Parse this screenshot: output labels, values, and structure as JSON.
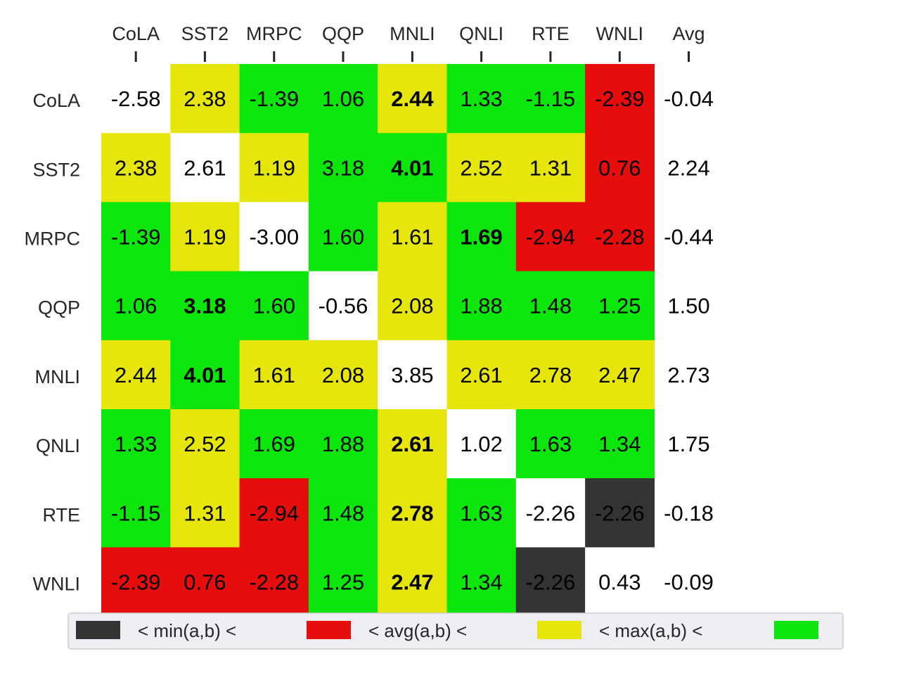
{
  "chart_data": {
    "type": "heatmap",
    "tasks": [
      "CoLA",
      "SST2",
      "MRPC",
      "QQP",
      "MNLI",
      "QNLI",
      "RTE",
      "WNLI"
    ],
    "avg_label": "Avg",
    "values": [
      [
        -2.58,
        2.38,
        -1.39,
        1.06,
        2.44,
        1.33,
        -1.15,
        -2.39
      ],
      [
        2.38,
        2.61,
        1.19,
        3.18,
        4.01,
        2.52,
        1.31,
        0.76
      ],
      [
        -1.39,
        1.19,
        -3.0,
        1.6,
        1.61,
        1.69,
        -2.94,
        -2.28
      ],
      [
        1.06,
        3.18,
        1.6,
        -0.56,
        2.08,
        1.88,
        1.48,
        1.25
      ],
      [
        2.44,
        4.01,
        1.61,
        2.08,
        3.85,
        2.61,
        2.78,
        2.47
      ],
      [
        1.33,
        2.52,
        1.69,
        1.88,
        2.61,
        1.02,
        1.63,
        1.34
      ],
      [
        -1.15,
        1.31,
        -2.94,
        1.48,
        2.78,
        1.63,
        -2.26,
        -2.26
      ],
      [
        -2.39,
        0.76,
        -2.28,
        1.25,
        2.47,
        1.34,
        -2.26,
        0.43
      ]
    ],
    "category_matrix": [
      [
        "none",
        "yellow",
        "green",
        "green",
        "yellow",
        "green",
        "green",
        "red"
      ],
      [
        "yellow",
        "none",
        "yellow",
        "green",
        "green",
        "yellow",
        "yellow",
        "red"
      ],
      [
        "green",
        "yellow",
        "none",
        "green",
        "yellow",
        "green",
        "red",
        "red"
      ],
      [
        "green",
        "green",
        "green",
        "none",
        "yellow",
        "green",
        "green",
        "green"
      ],
      [
        "yellow",
        "green",
        "yellow",
        "yellow",
        "none",
        "yellow",
        "yellow",
        "yellow"
      ],
      [
        "green",
        "yellow",
        "green",
        "green",
        "yellow",
        "none",
        "green",
        "green"
      ],
      [
        "green",
        "yellow",
        "red",
        "green",
        "yellow",
        "green",
        "none",
        "dark"
      ],
      [
        "red",
        "red",
        "red",
        "green",
        "yellow",
        "green",
        "dark",
        "none"
      ]
    ],
    "bold_cells": [
      [
        0,
        4
      ],
      [
        1,
        4
      ],
      [
        2,
        5
      ],
      [
        3,
        1
      ],
      [
        4,
        1
      ],
      [
        5,
        4
      ],
      [
        6,
        4
      ],
      [
        7,
        4
      ]
    ],
    "row_avg": [
      -0.04,
      2.24,
      -0.44,
      1.5,
      2.73,
      1.75,
      -0.18,
      -0.09
    ],
    "colors": {
      "dark": "#333333",
      "red": "#e60d0d",
      "yellow": "#e6e60d",
      "green": "#0de60d",
      "none": "#ffffff",
      "legend_bg": "#eeeef4",
      "legend_border": "#cccccc",
      "label": "#262626"
    },
    "legend": {
      "placement": "bottom",
      "items": [
        {
          "swatch": "dark",
          "text": "<  min(a,b)  <"
        },
        {
          "swatch": "red",
          "text": "<  avg(a,b)  <"
        },
        {
          "swatch": "yellow",
          "text": "<  max(a,b)  <"
        },
        {
          "swatch": "green",
          "text": ""
        }
      ]
    }
  }
}
